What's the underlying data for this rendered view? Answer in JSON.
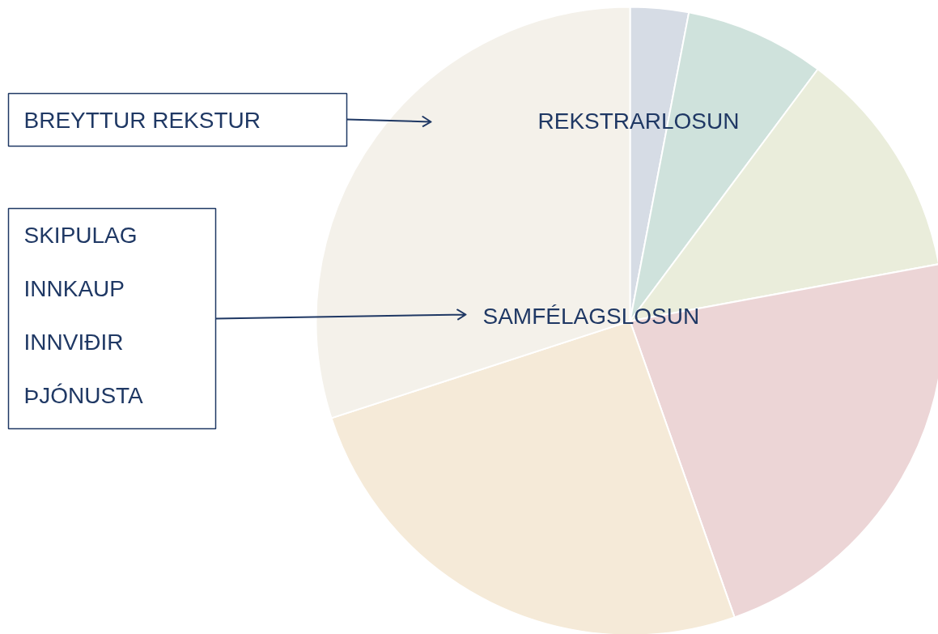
{
  "chart_data": {
    "type": "pie",
    "categories": [
      null,
      null,
      null,
      null,
      null,
      null
    ],
    "values": [
      3.0,
      7.2,
      11.9,
      22.5,
      25.4,
      30.0
    ],
    "colors": [
      "#d6dce5",
      "#cfe2dc",
      "#eaeddb",
      "#ecd5d6",
      "#f5ead8",
      "#f4f1ea"
    ],
    "annotations": [
      "REKSTRARLOSUN",
      "SAMFÉLAGSLOSUN",
      "BREYTTUR REKSTUR",
      "SKIPULAG",
      "INNKAUP",
      "INNVIÐIR",
      "ÞJÓNUSTA"
    ]
  }
}
